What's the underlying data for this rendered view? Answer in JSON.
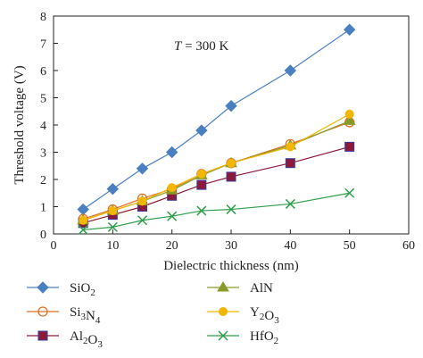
{
  "chart_data": {
    "type": "line",
    "xlabel": "Dielectric thickness (nm)",
    "ylabel": "Threshold voltage (V)",
    "xlim": [
      0,
      60
    ],
    "ylim": [
      0,
      8
    ],
    "x_ticks": [
      "0",
      "10",
      "20",
      "30",
      "40",
      "50",
      "60"
    ],
    "y_ticks": [
      "0",
      "1",
      "2",
      "3",
      "4",
      "5",
      "6",
      "7",
      "8"
    ],
    "annotation": {
      "variable": "T",
      "text": " = 300 K"
    },
    "grid": false,
    "legend_position": "bottom",
    "series": [
      {
        "name": "SiO2",
        "color": "#4a7fc1",
        "marker": "diamond",
        "x": [
          5,
          10,
          15,
          20,
          25,
          30,
          40,
          50
        ],
        "y": [
          0.9,
          1.65,
          2.4,
          3.0,
          3.8,
          4.7,
          6.0,
          7.5
        ]
      },
      {
        "name": "Si3N4",
        "color": "#e07020",
        "marker": "circle-open",
        "x": [
          5,
          10,
          15,
          20,
          25,
          30,
          40,
          50
        ],
        "y": [
          0.55,
          0.9,
          1.3,
          1.65,
          2.2,
          2.6,
          3.3,
          4.1
        ]
      },
      {
        "name": "Al2O3",
        "color": "#8b1a3a",
        "marker": "square",
        "x": [
          5,
          10,
          15,
          20,
          25,
          30,
          40,
          50
        ],
        "y": [
          0.4,
          0.7,
          1.0,
          1.4,
          1.8,
          2.1,
          2.6,
          3.2
        ]
      },
      {
        "name": "AlN",
        "color": "#8a9a2a",
        "marker": "triangle",
        "x": [
          5,
          10,
          15,
          20,
          25,
          30,
          40,
          50
        ],
        "y": [
          0.5,
          0.85,
          1.2,
          1.6,
          2.15,
          2.6,
          3.25,
          4.15
        ]
      },
      {
        "name": "Y2O3",
        "color": "#f2b705",
        "marker": "circle",
        "x": [
          5,
          10,
          15,
          20,
          25,
          30,
          40,
          50
        ],
        "y": [
          0.5,
          0.85,
          1.2,
          1.7,
          2.2,
          2.6,
          3.2,
          4.4
        ]
      },
      {
        "name": "HfO2",
        "color": "#2e9e4a",
        "marker": "x",
        "x": [
          5,
          10,
          15,
          20,
          25,
          30,
          40,
          50
        ],
        "y": [
          0.15,
          0.25,
          0.5,
          0.65,
          0.85,
          0.9,
          1.1,
          1.5
        ]
      }
    ],
    "legend": [
      {
        "base": "Si",
        "sub": "",
        "rest": "O",
        "sub2": "2",
        "series": 0
      },
      {
        "base": "Si",
        "sub": "3",
        "rest": "N",
        "sub2": "4",
        "series": 1
      },
      {
        "base": "Al",
        "sub": "2",
        "rest": "O",
        "sub2": "3",
        "series": 2
      },
      {
        "base": "AlN",
        "sub": "",
        "rest": "",
        "sub2": "",
        "series": 3
      },
      {
        "base": "Y",
        "sub": "2",
        "rest": "O",
        "sub2": "3",
        "series": 4
      },
      {
        "base": "Hf",
        "sub": "",
        "rest": "O",
        "sub2": "2",
        "series": 5
      }
    ]
  }
}
